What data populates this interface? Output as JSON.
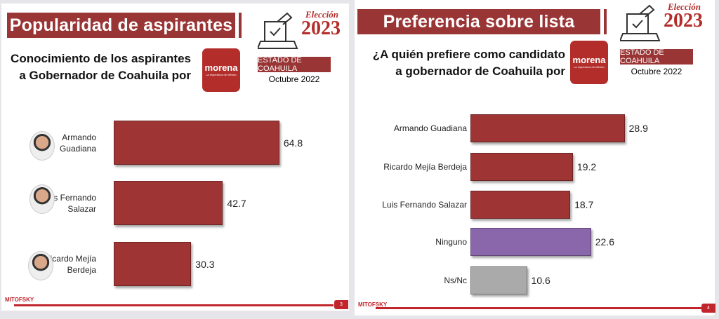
{
  "left": {
    "title": "Popularidad de aspirantes",
    "subtitle": [
      "Conocimiento de los aspirantes",
      "a Gobernador de Coahuila por"
    ],
    "party": "morena",
    "party_tag": "La esperanza de México",
    "election_label": "Elección",
    "year": "2023",
    "state": "ESTADO DE COAHUILA",
    "date": "Octubre 2022",
    "footer_logo": "MITOFSKY",
    "page": "3"
  },
  "right": {
    "title": "Preferencia sobre lista",
    "subtitle": [
      "¿A quién prefiere como candidato",
      "a gobernador de Coahuila por"
    ],
    "party": "morena",
    "party_tag": "La esperanza de México",
    "election_label": "Elección",
    "year": "2023",
    "state": "ESTADO DE COAHUILA",
    "date": "Octubre 2022",
    "footer_logo": "MITOFSKY",
    "page": "4"
  },
  "chart_data": [
    {
      "type": "bar",
      "orientation": "horizontal",
      "title": "Conocimiento de los aspirantes a Gobernador de Coahuila por morena",
      "categories": [
        "Armando Guadiana",
        "Luis Fernando Salazar",
        "Ricardo Mejía Berdeja"
      ],
      "values": [
        64.8,
        42.7,
        30.3
      ],
      "colors": [
        "#9e3434",
        "#9e3434",
        "#9e3434"
      ],
      "xlim": [
        0,
        100
      ]
    },
    {
      "type": "bar",
      "orientation": "horizontal",
      "title": "¿A quién prefiere como candidato a gobernador de Coahuila por morena",
      "categories": [
        "Armando Guadiana",
        "Ricardo Mejía Berdeja",
        "Luis Fernando Salazar",
        "Ninguno",
        "Ns/Nc"
      ],
      "values": [
        28.9,
        19.2,
        18.7,
        22.6,
        10.6
      ],
      "colors": [
        "#9e3434",
        "#9e3434",
        "#9e3434",
        "#8a66aa",
        "#aaaaaa"
      ],
      "xlim": [
        0,
        40
      ]
    }
  ]
}
